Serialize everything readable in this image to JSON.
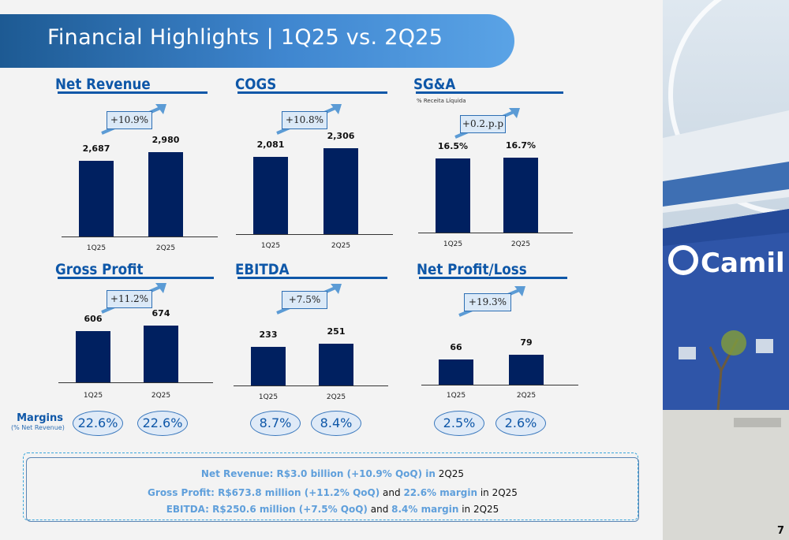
{
  "header": {
    "title": "Financial Highlights | 1Q25 vs. 2Q25"
  },
  "chart_data": [
    {
      "type": "bar",
      "title": "Net Revenue",
      "categories": [
        "1Q25",
        "2Q25"
      ],
      "values": [
        2687,
        2980
      ],
      "labels": [
        "2,687",
        "2,980"
      ],
      "change": "+10.9%"
    },
    {
      "type": "bar",
      "title": "COGS",
      "categories": [
        "1Q25",
        "2Q25"
      ],
      "values": [
        2081,
        2306
      ],
      "labels": [
        "2,081",
        "2,306"
      ],
      "change": "+10.8%"
    },
    {
      "type": "bar",
      "title": "SG&A",
      "subtitle": "% Receita Líquida",
      "categories": [
        "1Q25",
        "2Q25"
      ],
      "values": [
        16.5,
        16.7
      ],
      "labels": [
        "16.5%",
        "16.7%"
      ],
      "change": "+0.2.p.p"
    },
    {
      "type": "bar",
      "title": "Gross Profit",
      "categories": [
        "1Q25",
        "2Q25"
      ],
      "values": [
        606,
        674
      ],
      "labels": [
        "606",
        "674"
      ],
      "change": "+11.2%",
      "margins": [
        "22.6%",
        "22.6%"
      ]
    },
    {
      "type": "bar",
      "title": "EBITDA",
      "categories": [
        "1Q25",
        "2Q25"
      ],
      "values": [
        233,
        251
      ],
      "labels": [
        "233",
        "251"
      ],
      "change": "+7.5%",
      "margins": [
        "8.7%",
        "8.4%"
      ]
    },
    {
      "type": "bar",
      "title": "Net Profit/Loss",
      "categories": [
        "1Q25",
        "2Q25"
      ],
      "values": [
        66,
        79
      ],
      "labels": [
        "66",
        "79"
      ],
      "change": "+19.3%",
      "margins": [
        "2.5%",
        "2.6%"
      ]
    }
  ],
  "margins": {
    "label": "Margins",
    "sublabel": "(% Net Revenue)"
  },
  "summary": [
    [
      {
        "t": "Net Revenue: R$3.0 billion (+10.9% QoQ) in",
        "h": true
      },
      {
        "t": " 2Q25",
        "h": false
      }
    ],
    [
      {
        "t": "Gross Profit: R$673.8 million (+11.2% QoQ)",
        "h": true
      },
      {
        "t": " and ",
        "h": false
      },
      {
        "t": "22.6% margin",
        "h": true
      },
      {
        "t": " in 2Q25",
        "h": false
      }
    ],
    [
      {
        "t": "EBITDA: R$250.6 million (+7.5% QoQ)",
        "h": true
      },
      {
        "t": " and ",
        "h": false
      },
      {
        "t": "8.4% margin",
        "h": true
      },
      {
        "t": " in 2Q25",
        "h": false
      }
    ]
  ],
  "photo": {
    "brand": "Camil"
  },
  "page_number": "7",
  "colors": {
    "bar": "#002060",
    "title": "#0e57a8",
    "highlight": "#5f9fdb"
  }
}
